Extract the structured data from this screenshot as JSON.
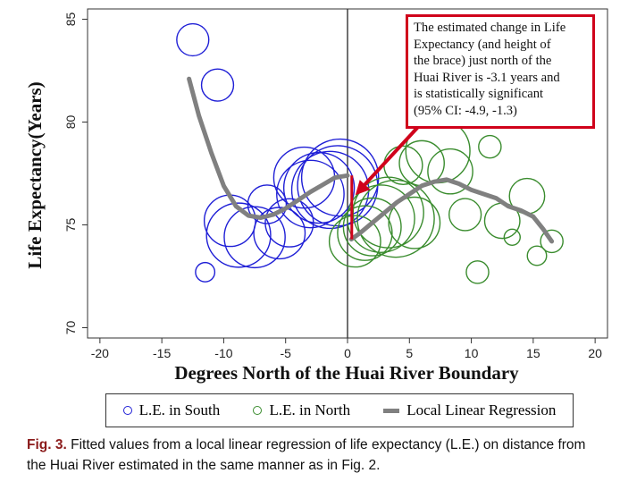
{
  "chart_data": {
    "type": "scatter",
    "xlabel": "Degrees North of the Huai River Boundary",
    "ylabel": "Life Expectancy(Years)",
    "xlim": [
      -21,
      21
    ],
    "ylim": [
      69.5,
      85.5
    ],
    "xticks": [
      -20,
      -15,
      -10,
      -5,
      0,
      5,
      10,
      15,
      20
    ],
    "yticks": [
      70,
      75,
      80,
      85
    ],
    "xtick_labels": [
      "-20",
      "-15",
      "-10",
      "-5",
      "0",
      "5",
      "10",
      "15",
      "20"
    ],
    "ytick_labels": [
      "70",
      "75",
      "80",
      "85"
    ],
    "vertical_line_x": 0,
    "series": [
      {
        "name": "L.E. in South",
        "color": "#1f1fd6",
        "points": [
          {
            "x": -12.5,
            "y": 84.0,
            "r": 1.0
          },
          {
            "x": -10.5,
            "y": 81.8,
            "r": 1.0
          },
          {
            "x": -11.5,
            "y": 72.7,
            "r": 0.6
          },
          {
            "x": -9.5,
            "y": 75.2,
            "r": 1.6
          },
          {
            "x": -8.8,
            "y": 74.5,
            "r": 2.0
          },
          {
            "x": -7.5,
            "y": 74.4,
            "r": 1.9
          },
          {
            "x": -6.5,
            "y": 76.0,
            "r": 1.2
          },
          {
            "x": -5.5,
            "y": 74.6,
            "r": 1.6
          },
          {
            "x": -4.7,
            "y": 75.1,
            "r": 1.5
          },
          {
            "x": -3.5,
            "y": 77.3,
            "r": 1.9
          },
          {
            "x": -3.0,
            "y": 76.5,
            "r": 2.1
          },
          {
            "x": -2.3,
            "y": 76.8,
            "r": 2.2
          },
          {
            "x": -1.4,
            "y": 76.7,
            "r": 2.4
          },
          {
            "x": -0.8,
            "y": 76.9,
            "r": 2.5
          },
          {
            "x": -0.6,
            "y": 77.3,
            "r": 2.4
          }
        ]
      },
      {
        "name": "L.E. in North",
        "color": "#3a8c2e",
        "points": [
          {
            "x": 0.6,
            "y": 74.2,
            "r": 1.6
          },
          {
            "x": 1.4,
            "y": 74.6,
            "r": 1.7
          },
          {
            "x": 2.0,
            "y": 74.9,
            "r": 1.8
          },
          {
            "x": 2.7,
            "y": 75.3,
            "r": 2.1
          },
          {
            "x": 3.3,
            "y": 75.6,
            "r": 2.2
          },
          {
            "x": 3.9,
            "y": 75.3,
            "r": 2.4
          },
          {
            "x": 5.4,
            "y": 75.1,
            "r": 1.6
          },
          {
            "x": 4.5,
            "y": 77.9,
            "r": 1.2
          },
          {
            "x": 6.0,
            "y": 78.0,
            "r": 1.4
          },
          {
            "x": 7.3,
            "y": 78.6,
            "r": 2.0
          },
          {
            "x": 8.3,
            "y": 77.6,
            "r": 1.4
          },
          {
            "x": 9.5,
            "y": 75.5,
            "r": 1.0
          },
          {
            "x": 10.5,
            "y": 72.7,
            "r": 0.7
          },
          {
            "x": 11.5,
            "y": 78.8,
            "r": 0.7
          },
          {
            "x": 12.5,
            "y": 75.2,
            "r": 1.1
          },
          {
            "x": 13.3,
            "y": 74.4,
            "r": 0.5
          },
          {
            "x": 14.5,
            "y": 76.4,
            "r": 1.1
          },
          {
            "x": 15.3,
            "y": 73.5,
            "r": 0.6
          },
          {
            "x": 16.5,
            "y": 74.2,
            "r": 0.7
          }
        ]
      },
      {
        "name": "Local Linear Regression",
        "color": "#808080",
        "type": "line",
        "segments": [
          [
            {
              "x": -12.8,
              "y": 82.1
            },
            {
              "x": -12.0,
              "y": 80.3
            },
            {
              "x": -11.0,
              "y": 78.5
            },
            {
              "x": -10.0,
              "y": 76.9
            },
            {
              "x": -9.0,
              "y": 75.9
            },
            {
              "x": -8.0,
              "y": 75.45
            },
            {
              "x": -7.0,
              "y": 75.35
            },
            {
              "x": -6.0,
              "y": 75.5
            },
            {
              "x": -5.0,
              "y": 75.8
            },
            {
              "x": -4.0,
              "y": 76.2
            },
            {
              "x": -3.0,
              "y": 76.6
            },
            {
              "x": -2.0,
              "y": 76.95
            },
            {
              "x": -1.0,
              "y": 77.3
            },
            {
              "x": 0.0,
              "y": 77.4
            }
          ],
          [
            {
              "x": 0.3,
              "y": 74.3
            },
            {
              "x": 1.0,
              "y": 74.6
            },
            {
              "x": 2.0,
              "y": 75.1
            },
            {
              "x": 3.0,
              "y": 75.6
            },
            {
              "x": 4.0,
              "y": 76.1
            },
            {
              "x": 5.0,
              "y": 76.5
            },
            {
              "x": 6.0,
              "y": 76.9
            },
            {
              "x": 7.0,
              "y": 77.1
            },
            {
              "x": 8.0,
              "y": 77.2
            },
            {
              "x": 9.0,
              "y": 77.0
            },
            {
              "x": 10.0,
              "y": 76.7
            },
            {
              "x": 11.0,
              "y": 76.5
            },
            {
              "x": 12.0,
              "y": 76.3
            },
            {
              "x": 13.0,
              "y": 75.9
            },
            {
              "x": 14.0,
              "y": 75.7
            },
            {
              "x": 15.0,
              "y": 75.4
            },
            {
              "x": 15.8,
              "y": 74.8
            },
            {
              "x": 16.5,
              "y": 74.2
            }
          ]
        ]
      }
    ],
    "brace": {
      "x": 0.2,
      "y_top": 77.4,
      "y_bottom": 74.3,
      "color": "#d0021b"
    },
    "annotation": {
      "lines": [
        "The estimated change in Life",
        "Expectancy (and height of",
        "the brace) just north of the",
        "Huai River is -3.1 years and",
        "is statistically significant",
        "(95% CI: -4.9, -1.3)"
      ],
      "color": "#d0021b"
    },
    "legend": {
      "placement": "bottom",
      "items": [
        {
          "label": "L.E. in South",
          "marker": "circle",
          "color": "#1f1fd6"
        },
        {
          "label": "L.E. in North",
          "marker": "circle",
          "color": "#3a8c2e"
        },
        {
          "label": "Local Linear Regression",
          "marker": "line",
          "color": "#808080"
        }
      ]
    }
  },
  "caption": {
    "fig_label": "Fig. 3.",
    "text": "Fitted values from a local linear regression of life expectancy (L.E.) on distance from the Huai River estimated in the same manner as in Fig. 2."
  }
}
